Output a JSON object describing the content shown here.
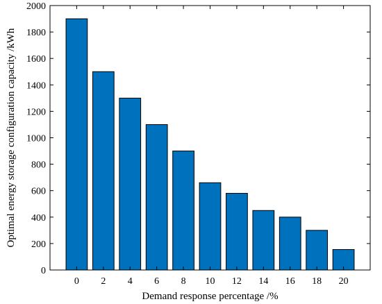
{
  "chart_data": {
    "type": "bar",
    "title": "",
    "xlabel": "Demand response percentage /%",
    "ylabel": "Optimal energy storage configuration capacity /kWh",
    "categories": [
      "0",
      "2",
      "4",
      "6",
      "8",
      "10",
      "12",
      "14",
      "16",
      "18",
      "20"
    ],
    "values": [
      1900,
      1500,
      1300,
      1100,
      900,
      660,
      580,
      450,
      400,
      300,
      155
    ],
    "ylim": [
      0,
      2000
    ],
    "yticks": [
      0,
      200,
      400,
      600,
      800,
      1000,
      1200,
      1400,
      1600,
      1800,
      2000
    ],
    "bar_color": "#0072bd",
    "bar_edge_color": "#000000",
    "grid": false,
    "legend": "none"
  }
}
